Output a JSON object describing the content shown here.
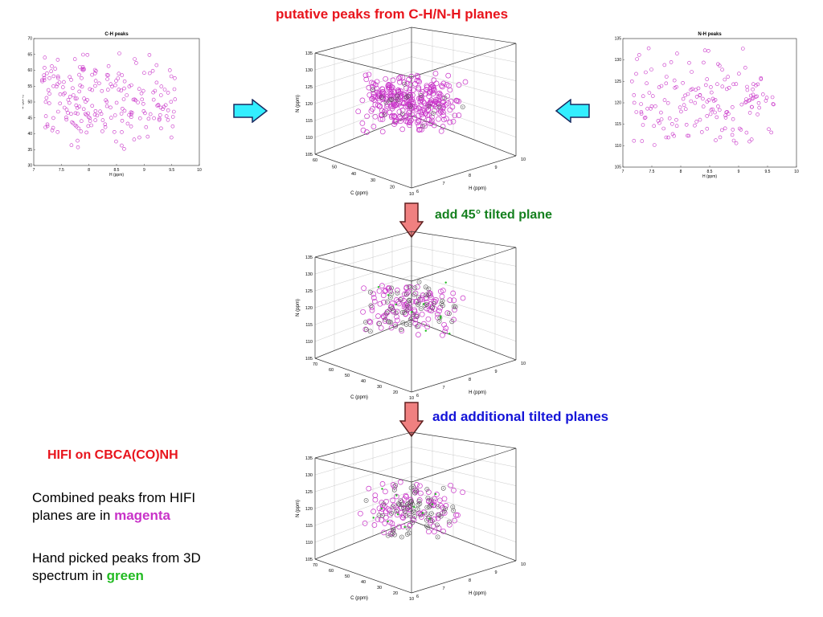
{
  "header": {
    "title": "putative peaks from C-H/N-H planes"
  },
  "steps": {
    "step1": "add 45° tilted plane",
    "step2": "add additional tilted planes"
  },
  "sidebar": {
    "heading": "HIFI on CBCA(CO)NH",
    "para1_prefix": "Combined peaks from HIFI planes are in",
    "para1_highlight": "magenta",
    "para2_prefix": "Hand picked peaks from 3D spectrum in",
    "para2_highlight": "green"
  },
  "colors": {
    "title_red": "#e8141c",
    "step_green": "#14801e",
    "step_blue": "#1414d8",
    "magenta": "#c832c8",
    "green": "#22bb22",
    "cyan_arrow": "#33eeff",
    "pink_arrow": "#f08080"
  },
  "chart_data": [
    {
      "id": "ch-plane",
      "type": "scatter",
      "title": "C-H peaks",
      "xlabel": "H (ppm)",
      "ylabel": "C (ppm)",
      "xlim": [
        7,
        10
      ],
      "ylim": [
        30,
        70
      ],
      "xticks": [
        "7",
        "7.5",
        "8",
        "8.5",
        "9",
        "9.5",
        "10"
      ],
      "yticks": [
        "30",
        "35",
        "40",
        "45",
        "50",
        "55",
        "60",
        "65",
        "70"
      ],
      "series": [
        {
          "color": "#c832c8",
          "n_points": 220
        }
      ]
    },
    {
      "id": "nh-plane",
      "type": "scatter",
      "title": "N-H peaks",
      "xlabel": "H (ppm)",
      "ylabel": "N (ppm)",
      "xlim": [
        7,
        10
      ],
      "ylim": [
        105,
        135
      ],
      "xticks": [
        "7",
        "7.5",
        "8",
        "8.5",
        "9",
        "9.5",
        "10"
      ],
      "yticks": [
        "105",
        "110",
        "115",
        "120",
        "125",
        "130",
        "135"
      ],
      "series": [
        {
          "color": "#c832c8",
          "n_points": 170
        }
      ]
    },
    {
      "id": "cube-1",
      "type": "scatter",
      "title": "",
      "xlabel": "C (ppm)",
      "ylabel": "H (ppm)",
      "zlabel": "N (ppm)",
      "xticks": [
        "60",
        "50",
        "40",
        "30",
        "20",
        "10"
      ],
      "yticks": [
        "6",
        "7",
        "8",
        "9",
        "10"
      ],
      "zticks": [
        "105",
        "110",
        "115",
        "120",
        "125",
        "130",
        "135"
      ],
      "series": [
        {
          "color": "#c832c8",
          "n_points": 320
        },
        {
          "color": "#555555",
          "n_points": 20
        }
      ]
    },
    {
      "id": "cube-2",
      "type": "scatter",
      "title": "",
      "xlabel": "C (ppm)",
      "ylabel": "H (ppm)",
      "zlabel": "N (ppm)",
      "xticks": [
        "70",
        "60",
        "50",
        "40",
        "30",
        "20",
        "10"
      ],
      "yticks": [
        "6",
        "7",
        "8",
        "9",
        "10"
      ],
      "zticks": [
        "105",
        "110",
        "115",
        "120",
        "125",
        "130",
        "135"
      ],
      "series": [
        {
          "color": "#c832c8",
          "n_points": 120
        },
        {
          "color": "#555555",
          "n_points": 60
        },
        {
          "color": "#22bb22",
          "n_points": 10
        }
      ]
    },
    {
      "id": "cube-3",
      "type": "scatter",
      "title": "",
      "xlabel": "C (ppm)",
      "ylabel": "H (ppm)",
      "zlabel": "N (ppm)",
      "xticks": [
        "70",
        "60",
        "50",
        "40",
        "30",
        "20",
        "10"
      ],
      "yticks": [
        "6",
        "7",
        "8",
        "9",
        "10"
      ],
      "zticks": [
        "105",
        "110",
        "115",
        "120",
        "125",
        "130",
        "135"
      ],
      "series": [
        {
          "color": "#c832c8",
          "n_points": 110
        },
        {
          "color": "#555555",
          "n_points": 70
        },
        {
          "color": "#22bb22",
          "n_points": 12
        }
      ]
    }
  ]
}
